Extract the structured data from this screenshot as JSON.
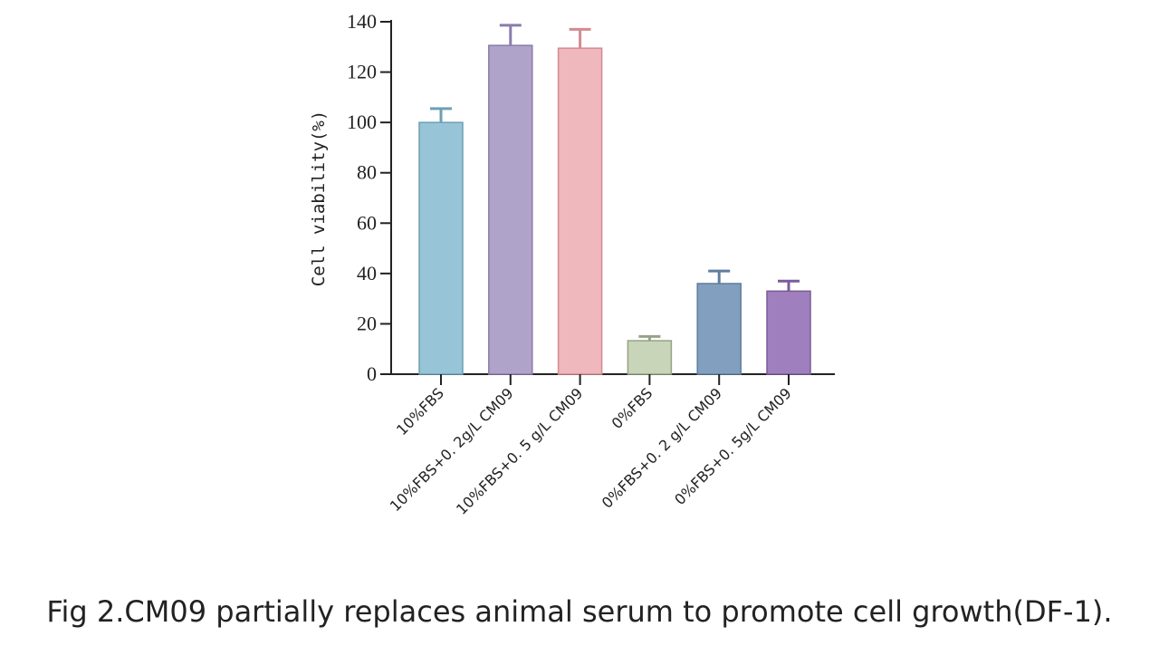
{
  "chart_data": {
    "type": "bar",
    "title": "",
    "xlabel": "",
    "ylabel": "Cell viability(%)",
    "ylim": [
      0,
      140
    ],
    "yticks": [
      0,
      20,
      40,
      60,
      80,
      100,
      120,
      140
    ],
    "grid": false,
    "categories": [
      "10%FBS",
      "10%FBS+0. 2g/L CM09",
      "10%FBS+0. 5 g/L CM09",
      "0%FBS",
      "0%FBS+0. 2 g/L CM09",
      "0%FBS+0. 5g/L CM09"
    ],
    "values": [
      100,
      130.6,
      129.5,
      13.3,
      36,
      33
    ],
    "error_upper": [
      5.5,
      8,
      7.5,
      1.7,
      5,
      4
    ],
    "colors": [
      "#97c4d6",
      "#afa3c9",
      "#efb8bc",
      "#c8d5b9",
      "#829fbf",
      "#9f7fbd"
    ],
    "edge_colors": [
      "#6e9fb3",
      "#8a7cab",
      "#d48a91",
      "#97a287",
      "#5f7d9f",
      "#7a5c99"
    ]
  },
  "caption": "Fig 2.CM09 partially replaces animal serum to promote cell growth(DF-1)."
}
